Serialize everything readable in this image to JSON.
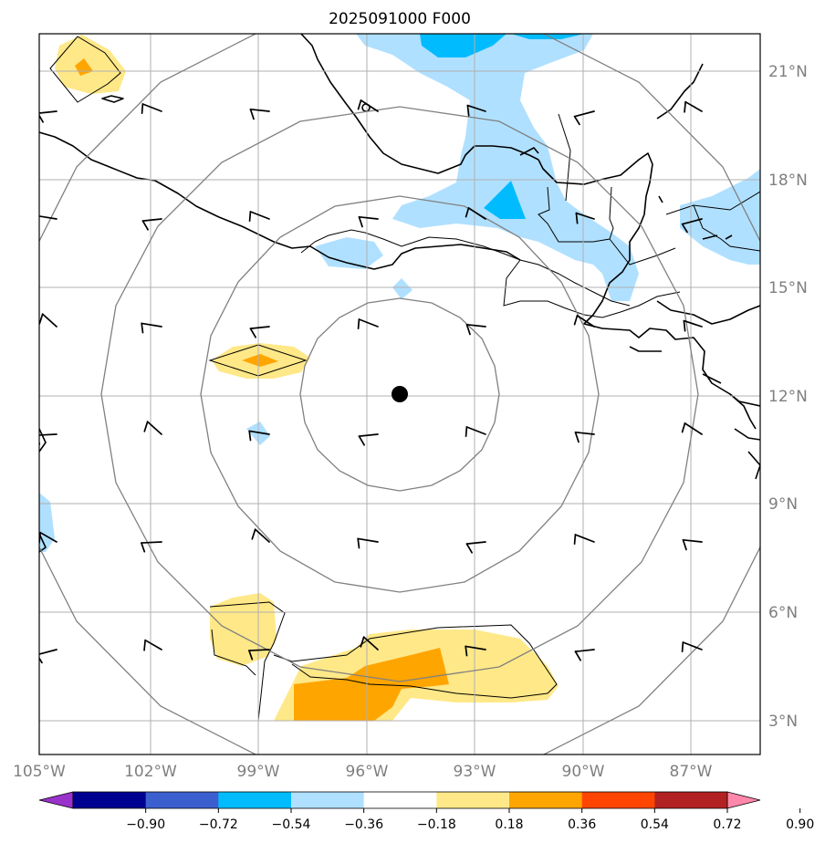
{
  "title": "2025091000 F000",
  "longitude_labels": [
    "105°W",
    "102°W",
    "99°W",
    "96°W",
    "93°W",
    "90°W",
    "87°W"
  ],
  "latitude_labels": [
    "21°N",
    "18°N",
    "15°N",
    "12°N",
    "9°N",
    "6°N",
    "3°N"
  ],
  "colorbar": {
    "ticks": [
      "−0.90",
      "−0.72",
      "−0.54",
      "−0.36",
      "−0.18",
      "0.18",
      "0.36",
      "0.54",
      "0.72",
      "0.90"
    ],
    "colors": [
      "#9a33cc",
      "#000090",
      "#3c5fd0",
      "#00bcff",
      "#b0e0ff",
      "#ffffff",
      "#ffe888",
      "#ffa500",
      "#ff4500",
      "#b22222",
      "#ff88aa"
    ]
  },
  "fill_colors": {
    "light_blue": "#b0e0ff",
    "medium_blue": "#00bcff",
    "light_yellow": "#ffe888",
    "orange": "#ffa500"
  },
  "center_marker": {
    "lon": -95,
    "lat": 12
  }
}
